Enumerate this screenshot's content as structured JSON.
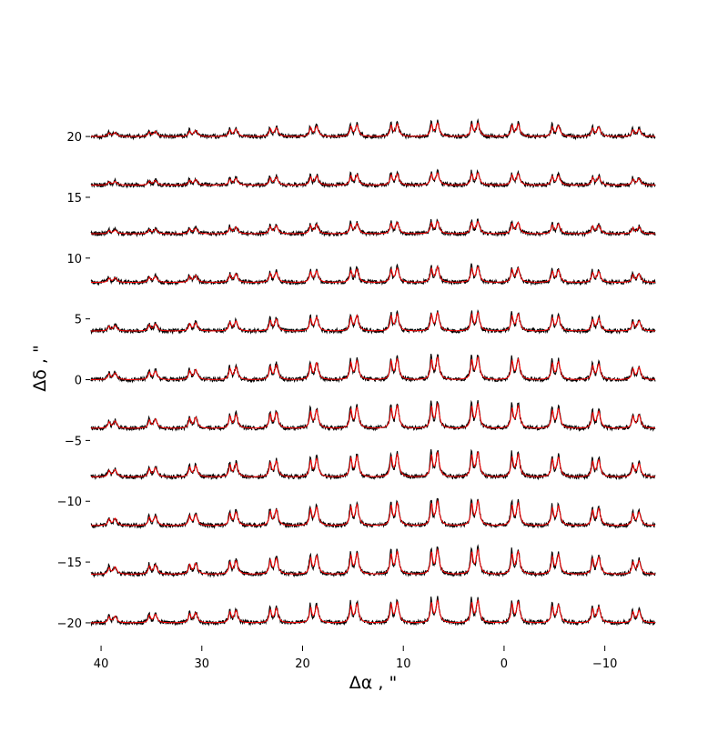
{
  "chart_data": {
    "type": "line",
    "title": "",
    "xlabel": "Δα , \"",
    "ylabel": "Δδ , \"",
    "xlim": [
      41,
      -15
    ],
    "ylim": [
      -21.5,
      23
    ],
    "x_ticks": [
      40,
      30,
      20,
      10,
      0,
      -10
    ],
    "x_tick_labels": [
      "40",
      "30",
      "20",
      "10",
      "0",
      "−10"
    ],
    "y_ticks": [
      20,
      15,
      10,
      5,
      0,
      -5,
      -10,
      -15,
      -20
    ],
    "y_tick_labels": [
      "20",
      "15",
      "10",
      "5",
      "0",
      "−5",
      "−10",
      "−15",
      "−20"
    ],
    "grid": false,
    "legend": "none",
    "colors": {
      "observed": "#000000",
      "model": "#ff0000"
    },
    "panel": {
      "columns_x": [
        39,
        35,
        31,
        27,
        23,
        19,
        15,
        11,
        7,
        3,
        -1,
        -5,
        -9,
        -13
      ],
      "rows_y": [
        20,
        16,
        12,
        8,
        4,
        0,
        -4,
        -8,
        -12,
        -16,
        -20
      ],
      "row_peak_scale": [
        0.33,
        0.3,
        0.3,
        0.38,
        0.45,
        0.55,
        0.6,
        0.6,
        0.6,
        0.6,
        0.55
      ],
      "column_peak_scale": [
        0.3,
        0.38,
        0.45,
        0.55,
        0.65,
        0.75,
        0.85,
        0.92,
        1.0,
        1.0,
        0.92,
        0.8,
        0.7,
        0.55
      ]
    }
  }
}
